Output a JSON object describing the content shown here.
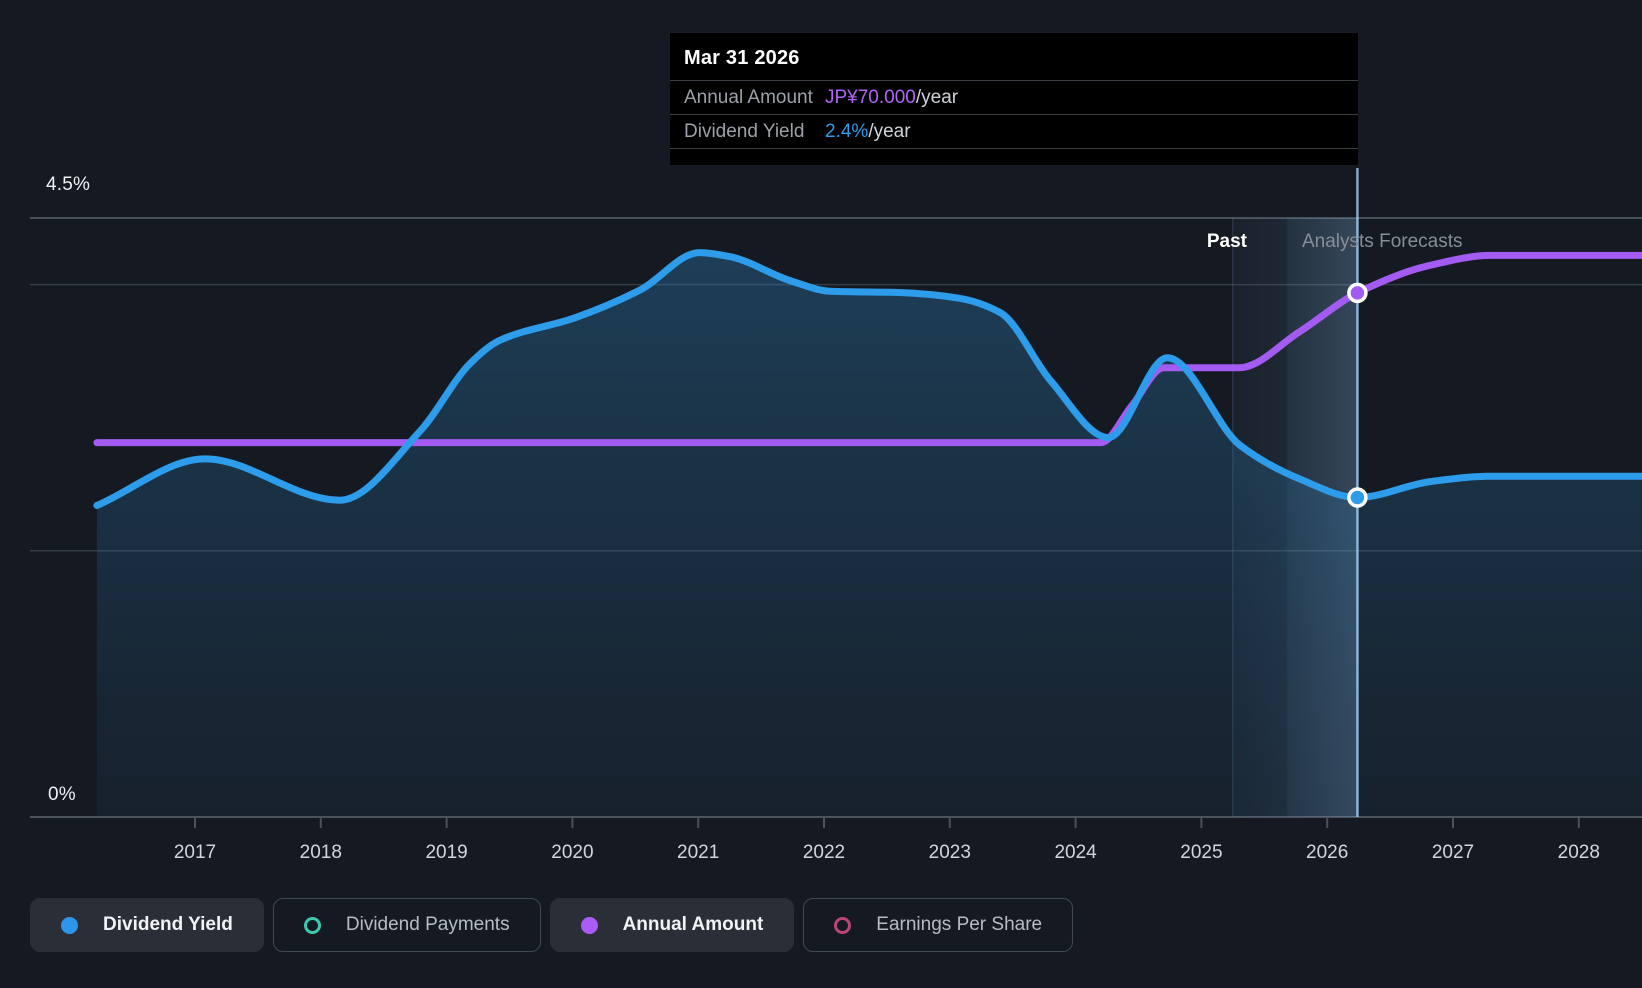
{
  "page": {
    "background": "#151a22"
  },
  "tooltip": {
    "date": "Mar 31 2026",
    "rows": [
      {
        "label": "Annual Amount",
        "value": "JP¥70.000",
        "suffix": "/year",
        "value_color": "#b164f6"
      },
      {
        "label": "Dividend Yield",
        "value": "2.4%",
        "suffix": "/year",
        "value_color": "#2d9cea"
      }
    ]
  },
  "region_labels": {
    "past": "Past",
    "forecast": "Analysts Forecasts"
  },
  "y_axis_labels": {
    "top": "4.5%",
    "bottom": "0%"
  },
  "legend": [
    {
      "label": "Dividend Yield",
      "style": "filled",
      "color": "#2e96ea"
    },
    {
      "label": "Dividend Payments",
      "style": "outline",
      "color": "#3ec9ae"
    },
    {
      "label": "Annual Amount",
      "style": "filled",
      "color": "#ab5cf6"
    },
    {
      "label": "Earnings Per Share",
      "style": "outline",
      "color": "#bb4579"
    }
  ],
  "chart_data": {
    "type": "line",
    "title": "Dividend yield history and forecast",
    "x_axis_years": [
      "2017",
      "2018",
      "2019",
      "2020",
      "2021",
      "2022",
      "2023",
      "2024",
      "2025",
      "2026",
      "2027",
      "2028"
    ],
    "x_domain": [
      2016.22,
      2028.5
    ],
    "y_axis_pct": {
      "min": 0,
      "max": 4.5,
      "top_gridline_label": "4.5%",
      "gridlines_pct": [
        4.5,
        4.0,
        2.0
      ]
    },
    "y_axis_yen": {
      "min": 0,
      "max": 80
    },
    "grid": true,
    "legend_position": "bottom-left",
    "past_forecast_band_years": [
      2025.25,
      2026.25
    ],
    "hover": {
      "year": 2026.24,
      "date": "Mar 31 2026",
      "dividend_yield_pct": 2.4,
      "annual_amount_yen": 70
    },
    "series": [
      {
        "name": "Dividend Yield",
        "unit": "%",
        "color": "#2d9cea",
        "area": true,
        "scale": "pct",
        "points": [
          [
            2016.22,
            2.34
          ],
          [
            2017.08,
            2.69
          ],
          [
            2018.15,
            2.38
          ],
          [
            2018.79,
            2.9
          ],
          [
            2019.19,
            3.41
          ],
          [
            2019.42,
            3.58
          ],
          [
            2020.02,
            3.75
          ],
          [
            2020.54,
            3.96
          ],
          [
            2021.01,
            4.24
          ],
          [
            2021.25,
            4.21
          ],
          [
            2021.73,
            4.03
          ],
          [
            2022.05,
            3.95
          ],
          [
            2022.6,
            3.94
          ],
          [
            2023.06,
            3.9
          ],
          [
            2023.4,
            3.79
          ],
          [
            2023.8,
            3.28
          ],
          [
            2024.26,
            2.85
          ],
          [
            2024.73,
            3.45
          ],
          [
            2025.31,
            2.79
          ],
          [
            2025.78,
            2.54
          ],
          [
            2026.24,
            2.4
          ],
          [
            2026.82,
            2.52
          ],
          [
            2027.29,
            2.56
          ],
          [
            2028.5,
            2.56
          ]
        ]
      },
      {
        "name": "Annual Amount",
        "unit": "JP¥",
        "color": "#a45bf2",
        "area": false,
        "scale": "yen",
        "points": [
          [
            2016.22,
            50
          ],
          [
            2018,
            50
          ],
          [
            2020,
            50
          ],
          [
            2022,
            50
          ],
          [
            2023.5,
            50
          ],
          [
            2024.2,
            50
          ],
          [
            2024.45,
            55
          ],
          [
            2024.7,
            60
          ],
          [
            2025.0,
            60
          ],
          [
            2025.3,
            60
          ],
          [
            2025.78,
            64.8
          ],
          [
            2026.24,
            70
          ],
          [
            2026.8,
            73.6
          ],
          [
            2027.3,
            75
          ],
          [
            2028.5,
            75
          ]
        ]
      }
    ]
  }
}
